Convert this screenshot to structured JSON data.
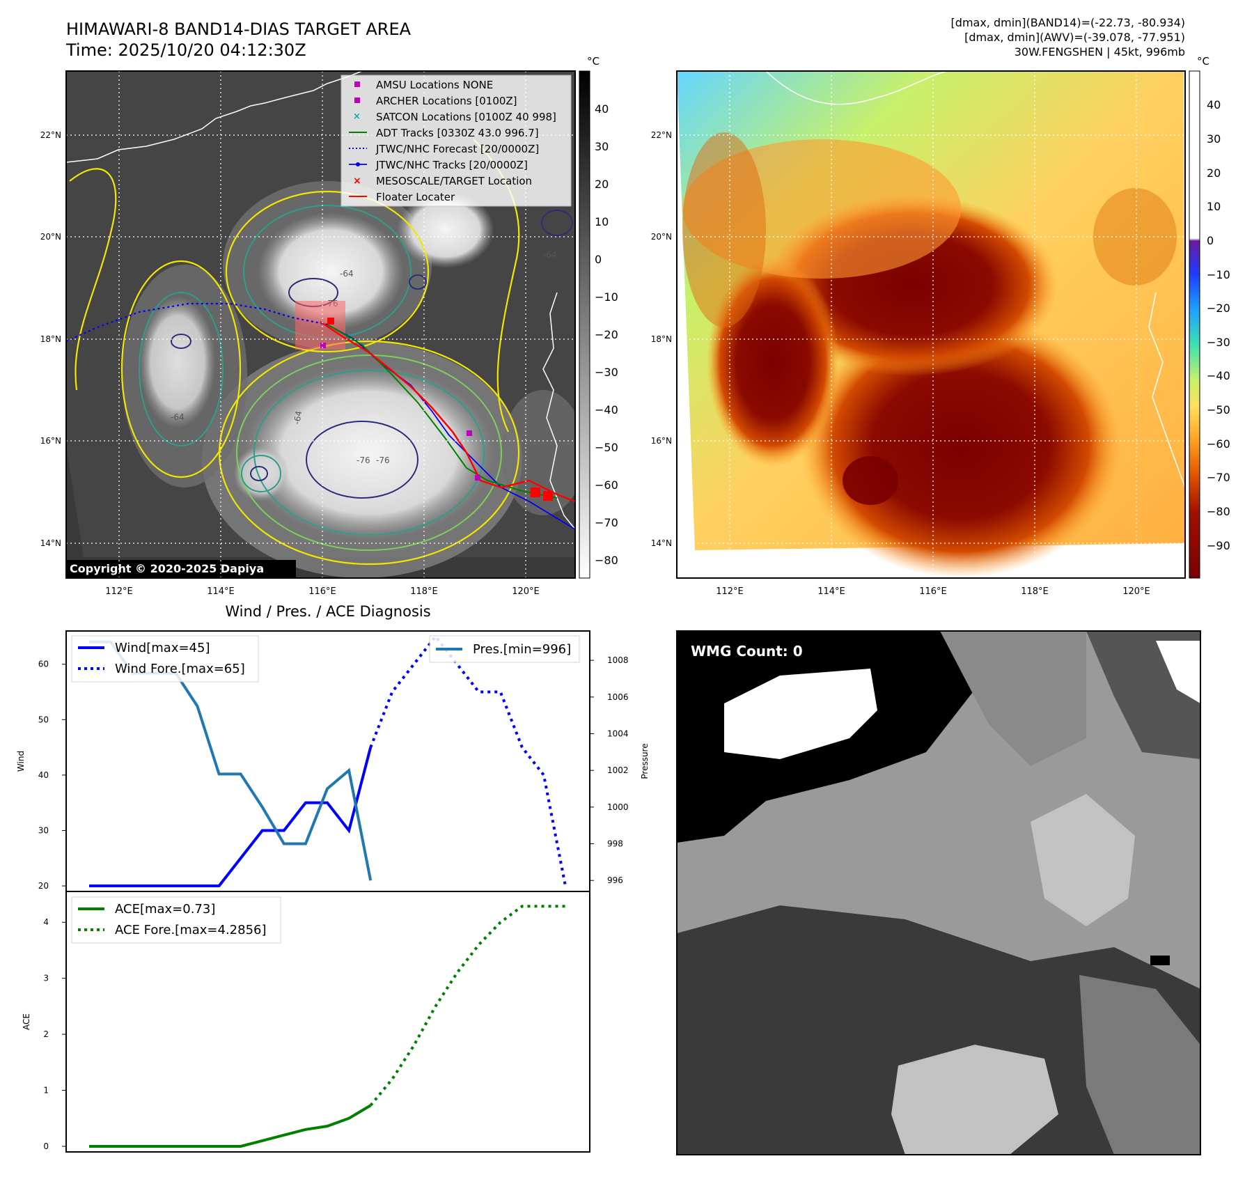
{
  "header": {
    "title_line1": "HIMAWARI-8 BAND14-DIAS TARGET AREA",
    "title_line2": "Time: 2025/10/20 04:12:30Z",
    "info_line1": "[dmax, dmin](BAND14)=(-22.73, -80.934)",
    "info_line2": "[dmax, dmin](AWV)=(-39.078, -77.951)",
    "info_line3": "30W.FENGSHEN | 45kt, 996mb"
  },
  "map_panels": {
    "lat_labels": [
      "22°N",
      "20°N",
      "18°N",
      "16°N",
      "14°N"
    ],
    "lon_labels": [
      "112°E",
      "114°E",
      "116°E",
      "118°E",
      "120°E"
    ],
    "copyright": "Copyright © 2020-2025 Dapiya",
    "contour_labels": [
      "-64",
      "-76",
      "-64",
      "-76",
      "-64",
      "-76",
      "-64"
    ]
  },
  "colorbar_ir": {
    "unit": "°C",
    "ticks": [
      "40",
      "30",
      "20",
      "10",
      "0",
      "−10",
      "−20",
      "−30",
      "−40",
      "−50",
      "−60",
      "−70",
      "−80"
    ]
  },
  "colorbar_awv": {
    "unit": "°C",
    "ticks": [
      "40",
      "30",
      "20",
      "10",
      "0",
      "−10",
      "−20",
      "−30",
      "−40",
      "−50",
      "−60",
      "−70",
      "−80",
      "−90"
    ]
  },
  "legend": [
    {
      "label": "AMSU Locations NONE",
      "color": "#c000c0",
      "marker": "square"
    },
    {
      "label": "ARCHER Locations [0100Z]",
      "color": "#c000c0",
      "marker": "square"
    },
    {
      "label": "SATCON Locations [0100Z 40 998]",
      "color": "#00b0b0",
      "marker": "x"
    },
    {
      "label": "ADT Tracks [0330Z 43.0 996.7]",
      "color": "#008000",
      "marker": "line"
    },
    {
      "label": "JTWC/NHC Forecast [20/0000Z]",
      "color": "#0000ff",
      "marker": "dotted"
    },
    {
      "label": "JTWC/NHC Tracks [20/0000Z]",
      "color": "#0000ff",
      "marker": "line-dot"
    },
    {
      "label": "MESOSCALE/TARGET Location",
      "color": "#ff0000",
      "marker": "x"
    },
    {
      "label": "Floater Locater",
      "color": "#ff0000",
      "marker": "line"
    }
  ],
  "wmg": {
    "label": "WMG Count: 0"
  },
  "colors": {
    "wind": "#0000ff",
    "pressure": "#1f77b4",
    "ace": "#008000"
  },
  "chart_data": [
    {
      "type": "line",
      "title": "Wind / Pres. / ACE Diagnosis",
      "xlabel": "",
      "ylabel": "Wind",
      "ylabel_right": "Pressure",
      "ylim": [
        19,
        66
      ],
      "ylim_right": [
        995.4,
        1009.6
      ],
      "x": [
        0,
        1,
        2,
        3,
        4,
        5,
        6,
        7,
        8,
        9,
        10,
        11,
        12,
        13,
        14,
        15,
        16,
        17,
        18,
        19,
        20,
        21,
        22
      ],
      "yticks": [
        "20",
        "30",
        "40",
        "50",
        "60"
      ],
      "yticks_right": [
        "996",
        "998",
        "1000",
        "1002",
        "1004",
        "1006",
        "1008"
      ],
      "series": [
        {
          "name": "Wind[max=45]",
          "axis": "left",
          "style": "solid",
          "x": [
            0,
            1,
            2,
            3,
            4,
            5,
            6,
            7,
            8,
            9,
            10,
            11,
            12,
            13
          ],
          "values": [
            20,
            20,
            20,
            20,
            20,
            20,
            20,
            25,
            30,
            30,
            35,
            35,
            30,
            45
          ]
        },
        {
          "name": "Wind Fore.[max=65]",
          "axis": "left",
          "style": "dotted",
          "x": [
            13,
            14,
            15,
            16,
            17,
            18,
            19,
            20,
            21,
            22
          ],
          "values": [
            45,
            55,
            60,
            65,
            60,
            55,
            55,
            45,
            40,
            20
          ]
        },
        {
          "name": "Pres.[min=996]",
          "axis": "right",
          "style": "solid",
          "x": [
            0,
            1,
            2,
            3,
            4,
            5,
            6,
            7,
            8,
            9,
            10,
            11,
            12,
            13
          ],
          "values": [
            1009,
            1009,
            1007.3,
            1007.3,
            1007.3,
            1005.5,
            1001.8,
            1001.8,
            1000,
            998,
            998,
            1001,
            1002,
            996
          ]
        }
      ]
    },
    {
      "type": "line",
      "title": "",
      "xlabel": "",
      "ylabel": "ACE",
      "ylim": [
        -0.1,
        4.55
      ],
      "x": [
        0,
        1,
        2,
        3,
        4,
        5,
        6,
        7,
        8,
        9,
        10,
        11,
        12,
        13,
        14,
        15,
        16,
        17,
        18,
        19,
        20,
        21,
        22
      ],
      "yticks": [
        "0",
        "1",
        "2",
        "3",
        "4"
      ],
      "series": [
        {
          "name": "ACE[max=0.73]",
          "style": "solid",
          "x": [
            0,
            1,
            2,
            3,
            4,
            5,
            6,
            7,
            8,
            9,
            10,
            11,
            12,
            13
          ],
          "values": [
            0,
            0,
            0,
            0,
            0,
            0,
            0,
            0,
            0.1,
            0.2,
            0.3,
            0.36,
            0.5,
            0.73
          ]
        },
        {
          "name": "ACE Fore.[max=4.2856]",
          "style": "dotted",
          "x": [
            13,
            14,
            15,
            16,
            17,
            18,
            19,
            20,
            21,
            22
          ],
          "values": [
            0.73,
            1.2,
            1.8,
            2.5,
            3.1,
            3.6,
            4.0,
            4.2856,
            4.2856,
            4.2856
          ]
        }
      ]
    }
  ]
}
